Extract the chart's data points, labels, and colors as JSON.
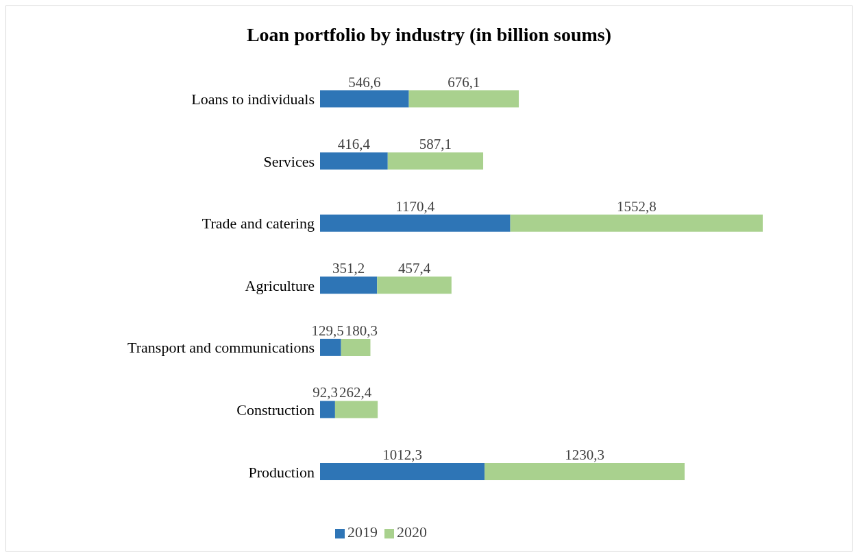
{
  "chart_data": {
    "type": "bar",
    "title": "Loan portfolio by industry (in billion soums)",
    "orientation": "horizontal",
    "stacked": true,
    "legend": "bottom",
    "categories": [
      "Loans to individuals",
      "Services",
      "Trade and catering",
      "Agriculture",
      "Transport and communications",
      "Construction",
      "Production"
    ],
    "series": [
      {
        "name": "2019",
        "color": "#2e75b6",
        "values": [
          546.6,
          416.4,
          1170.4,
          351.2,
          129.5,
          92.3,
          1012.3
        ],
        "value_labels": [
          "546,6",
          "416,4",
          "1170,4",
          "351,2",
          "129,5",
          "92,3",
          "1012,3"
        ]
      },
      {
        "name": "2020",
        "color": "#a9d18e",
        "values": [
          676.1,
          587.1,
          1552.8,
          457.4,
          180.3,
          262.4,
          1230.3
        ],
        "value_labels": [
          "676,1",
          "587,1",
          "1552,8",
          "457,4",
          "180,3",
          "262,4",
          "1230,3"
        ]
      }
    ]
  }
}
